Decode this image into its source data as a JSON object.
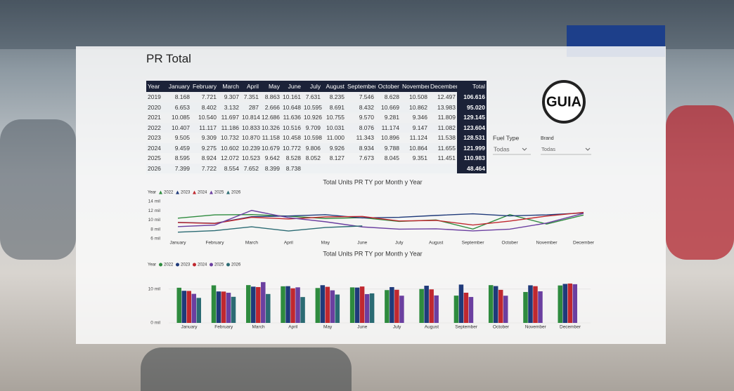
{
  "header": {
    "title": "PR  Total"
  },
  "table": {
    "columns": [
      "Year",
      "January",
      "February",
      "March",
      "April",
      "May",
      "June",
      "July",
      "August",
      "September",
      "October",
      "November",
      "December",
      "Total"
    ],
    "rows": [
      [
        "2019",
        "8.168",
        "7.721",
        "9.307",
        "7.351",
        "8.863",
        "10.161",
        "7.631",
        "8.235",
        "7.546",
        "8.628",
        "10.508",
        "12.497",
        "106.616"
      ],
      [
        "2020",
        "6.653",
        "8.402",
        "3.132",
        "287",
        "2.666",
        "10.648",
        "10.595",
        "8.691",
        "8.432",
        "10.669",
        "10.862",
        "13.983",
        "95.020"
      ],
      [
        "2021",
        "10.085",
        "10.540",
        "11.697",
        "10.814",
        "12.686",
        "11.636",
        "10.926",
        "10.755",
        "9.570",
        "9.281",
        "9.346",
        "11.809",
        "129.145"
      ],
      [
        "2022",
        "10.407",
        "11.117",
        "11.186",
        "10.833",
        "10.326",
        "10.516",
        "9.709",
        "10.031",
        "8.076",
        "11.174",
        "9.147",
        "11.082",
        "123.604"
      ],
      [
        "2023",
        "9.505",
        "9.309",
        "10.732",
        "10.870",
        "11.158",
        "10.458",
        "10.598",
        "11.000",
        "11.343",
        "10.896",
        "11.124",
        "11.538",
        "128.531"
      ],
      [
        "2024",
        "9.459",
        "9.275",
        "10.602",
        "10.239",
        "10.679",
        "10.772",
        "9.806",
        "9.926",
        "8.934",
        "9.788",
        "10.864",
        "11.655",
        "121.999"
      ],
      [
        "2025",
        "8.595",
        "8.924",
        "12.072",
        "10.523",
        "9.642",
        "8.528",
        "8.052",
        "8.127",
        "7.673",
        "8.045",
        "9.351",
        "11.451",
        "110.983"
      ],
      [
        "2026",
        "7.399",
        "7.722",
        "8.554",
        "7.652",
        "8.399",
        "8.738",
        null,
        null,
        null,
        null,
        null,
        null,
        "48.464"
      ]
    ]
  },
  "logo": {
    "text": "GUIA"
  },
  "slicers": [
    {
      "label": "Fuel Type",
      "value": "Todas"
    },
    {
      "label": "Brand",
      "value": "Todas"
    }
  ],
  "chart_data": [
    {
      "type": "line",
      "title": "Total Units PR TY por Month y Year",
      "legend_title": "Year",
      "categories": [
        "January",
        "February",
        "March",
        "April",
        "May",
        "June",
        "July",
        "August",
        "September",
        "October",
        "November",
        "December"
      ],
      "series": [
        {
          "name": "2022",
          "color": "#2e8b3e",
          "values": [
            10407,
            11117,
            11186,
            10833,
            10326,
            10516,
            9709,
            10031,
            8076,
            11174,
            9147,
            11082
          ]
        },
        {
          "name": "2023",
          "color": "#1f3a7a",
          "values": [
            9505,
            9309,
            10732,
            10870,
            11158,
            10458,
            10598,
            11000,
            11343,
            10896,
            11124,
            11538
          ]
        },
        {
          "name": "2024",
          "color": "#c0282f",
          "values": [
            9459,
            9275,
            10602,
            10239,
            10679,
            10772,
            9806,
            9926,
            8934,
            9788,
            10864,
            11655
          ]
        },
        {
          "name": "2025",
          "color": "#6b3fa0",
          "values": [
            8595,
            8924,
            12072,
            10523,
            9642,
            8528,
            8052,
            8127,
            7673,
            8045,
            9351,
            11451
          ]
        },
        {
          "name": "2026",
          "color": "#2b6b73",
          "values": [
            7399,
            7722,
            8554,
            7652,
            8399,
            8738,
            null,
            null,
            null,
            null,
            null,
            null
          ]
        }
      ],
      "ylim": [
        6000,
        14000
      ],
      "yticks": [
        {
          "value": 6000,
          "label": "6 mil"
        },
        {
          "value": 8000,
          "label": "8 mil"
        },
        {
          "value": 10000,
          "label": "10 mil"
        },
        {
          "value": 12000,
          "label": "12 mil"
        },
        {
          "value": 14000,
          "label": "14 mil"
        }
      ],
      "grid": false
    },
    {
      "type": "bar",
      "title": "Total Units PR TY por Month y Year",
      "legend_title": "Year",
      "categories": [
        "January",
        "February",
        "March",
        "April",
        "May",
        "June",
        "July",
        "August",
        "September",
        "October",
        "November",
        "December"
      ],
      "series": [
        {
          "name": "2022",
          "color": "#2e8b3e",
          "values": [
            10407,
            11117,
            11186,
            10833,
            10326,
            10516,
            9709,
            10031,
            8076,
            11174,
            9147,
            11082
          ]
        },
        {
          "name": "2023",
          "color": "#1f3a7a",
          "values": [
            9505,
            9309,
            10732,
            10870,
            11158,
            10458,
            10598,
            11000,
            11343,
            10896,
            11124,
            11538
          ]
        },
        {
          "name": "2024",
          "color": "#c0282f",
          "values": [
            9459,
            9275,
            10602,
            10239,
            10679,
            10772,
            9806,
            9926,
            8934,
            9788,
            10864,
            11655
          ]
        },
        {
          "name": "2025",
          "color": "#6b3fa0",
          "values": [
            8595,
            8924,
            12072,
            10523,
            9642,
            8528,
            8052,
            8127,
            7673,
            8045,
            9351,
            11451
          ]
        },
        {
          "name": "2026",
          "color": "#2b6b73",
          "values": [
            7399,
            7722,
            8554,
            7652,
            8399,
            8738,
            null,
            null,
            null,
            null,
            null,
            null
          ]
        }
      ],
      "ylim": [
        0,
        13500
      ],
      "yticks": [
        {
          "value": 0,
          "label": "0 mil"
        },
        {
          "value": 10000,
          "label": "10 mil"
        }
      ],
      "grid": true
    }
  ]
}
